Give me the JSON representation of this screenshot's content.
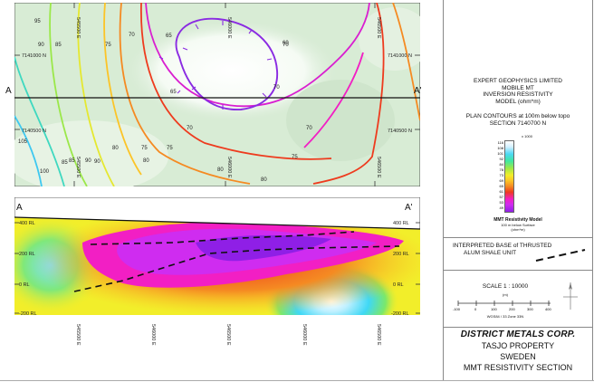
{
  "plan_map": {
    "section_left": "A",
    "section_right": "A'",
    "northings": [
      "7141000 N",
      "7140500 N"
    ],
    "eastings": [
      "545500 E",
      "546000 E",
      "546500 E"
    ],
    "contour_labels": [
      {
        "text": "95"
      },
      {
        "text": "90"
      },
      {
        "text": "85"
      },
      {
        "text": "75"
      },
      {
        "text": "70"
      },
      {
        "text": "65"
      },
      {
        "text": "70"
      },
      {
        "text": "65"
      },
      {
        "text": "70"
      },
      {
        "text": "80"
      },
      {
        "text": "85"
      },
      {
        "text": "90"
      },
      {
        "text": "75"
      },
      {
        "text": "100"
      },
      {
        "text": "105"
      },
      {
        "text": "85"
      },
      {
        "text": "90"
      },
      {
        "text": "80"
      },
      {
        "text": "75"
      },
      {
        "text": "70"
      },
      {
        "text": "75"
      },
      {
        "text": "80"
      },
      {
        "text": "80"
      },
      {
        "text": "70"
      },
      {
        "text": "60"
      }
    ]
  },
  "section": {
    "left_label": "A",
    "right_label": "A'",
    "rl_labels": [
      "400 RL",
      "200 RL",
      "0 RL",
      "-200 RL"
    ],
    "eastings": [
      "545500 E",
      "546000 E",
      "546500 E",
      "546000 E",
      "546500 E"
    ]
  },
  "title_block": {
    "lines": [
      "EXPERT GEOPHYSICS LIMITED",
      "MOBILE MT",
      "INVERSION RESISTIVITY",
      "MODEL (ohm*m)"
    ],
    "plan_lines": [
      "PLAN CONTOURS at 100m below topo",
      "SECTION  7140700 N"
    ],
    "legend_unit": "x 1000",
    "legend_values": [
      "116",
      "108",
      "101",
      "92",
      "84",
      "78",
      "73",
      "69",
      "65",
      "61",
      "57",
      "53",
      "49"
    ],
    "legend_caption": "MMT Resistivity Model",
    "legend_sub": [
      "100 m below Surface",
      "(ohm*m)"
    ],
    "interp_label": [
      "INTERPRETED BASE of THRUSTED",
      "ALUM SHALE UNIT"
    ],
    "scale": "SCALE  1 : 10000",
    "scale_unit": "(m)",
    "scale_ticks": [
      "-100",
      "0",
      "100",
      "200",
      "300",
      "400"
    ],
    "scale_datum": "WGS84 / 33 Zone 33N",
    "company": "DISTRICT METALS CORP.",
    "property": "TASJO PROPERTY",
    "country": "SWEDEN",
    "section_title": "MMT RESISTIVITY SECTION"
  },
  "colors": {
    "resistivity_ramp": [
      "#ffffff",
      "#d4f0ff",
      "#4fd8f5",
      "#3fe8a0",
      "#9be84a",
      "#f2ee2a",
      "#fcc427",
      "#f58a22",
      "#ee3b1e",
      "#f21fc4",
      "#cf2cf0",
      "#8f1fe6"
    ]
  }
}
